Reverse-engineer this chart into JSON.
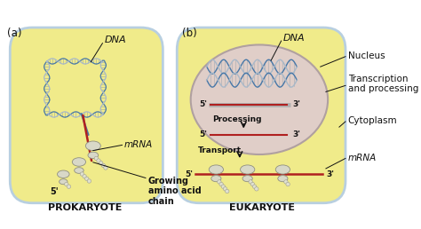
{
  "bg_color": "#ffffff",
  "cell_fill": "#f0eb8a",
  "cell_border": "#b8cfe0",
  "nucleus_fill": "#e0cec8",
  "nucleus_border": "#b0a0a0",
  "dna_blue": "#4878a8",
  "dna_gray": "#a8b8c8",
  "mrna_color": "#b02020",
  "ribosome_fill": "#d8d8c8",
  "ribosome_border": "#909080",
  "peptide_fill": "#e0e0d0",
  "peptide_border": "#a0a090",
  "arrow_color": "#111111",
  "text_color": "#111111",
  "label_a": "(a)",
  "label_b": "(b)",
  "title_prok": "PROKARYOTE",
  "title_euk": "EUKARYOTE",
  "dna_label_a": "DNA",
  "mrna_label_a": "mRNA",
  "five_prime_a": "5'",
  "growing_label": "Growing\namino acid\nchain",
  "dna_label_b": "DNA",
  "processing_label": "Processing",
  "transport_label": "Transport",
  "five_b1": "5'",
  "three_b1": "3'",
  "five_b2": "5'",
  "three_b2": "3'",
  "five_b3": "5'",
  "three_b3": "3'",
  "nucleus_label": "Nucleus",
  "transcription_label": "Transcription\nand processing",
  "cytoplasm_label": "Cytoplasm",
  "mrna_label_b": "mRNA"
}
